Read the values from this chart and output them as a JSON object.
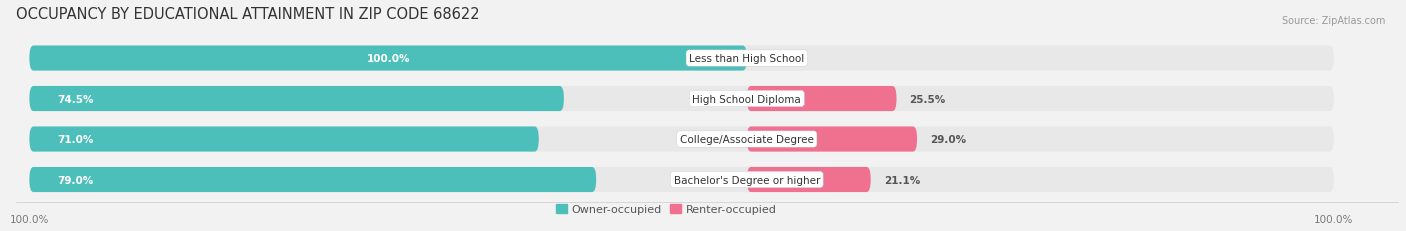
{
  "title": "OCCUPANCY BY EDUCATIONAL ATTAINMENT IN ZIP CODE 68622",
  "source": "Source: ZipAtlas.com",
  "categories": [
    "Less than High School",
    "High School Diploma",
    "College/Associate Degree",
    "Bachelor's Degree or higher"
  ],
  "owner_pct": [
    100.0,
    74.5,
    71.0,
    79.0
  ],
  "renter_pct": [
    0.0,
    25.5,
    29.0,
    21.1
  ],
  "owner_color": "#4dbfbb",
  "renter_color": "#f07090",
  "renter_light_color": "#f5a0b8",
  "bg_color": "#f2f2f2",
  "bar_bg_color": "#e8e8e8",
  "title_fontsize": 10.5,
  "label_fontsize": 8.0,
  "pct_fontsize": 7.5,
  "axis_label_fontsize": 7.5,
  "legend_fontsize": 8.0,
  "bar_height": 0.62,
  "total_width": 100,
  "figsize": [
    14.06,
    2.32
  ],
  "dpi": 100
}
